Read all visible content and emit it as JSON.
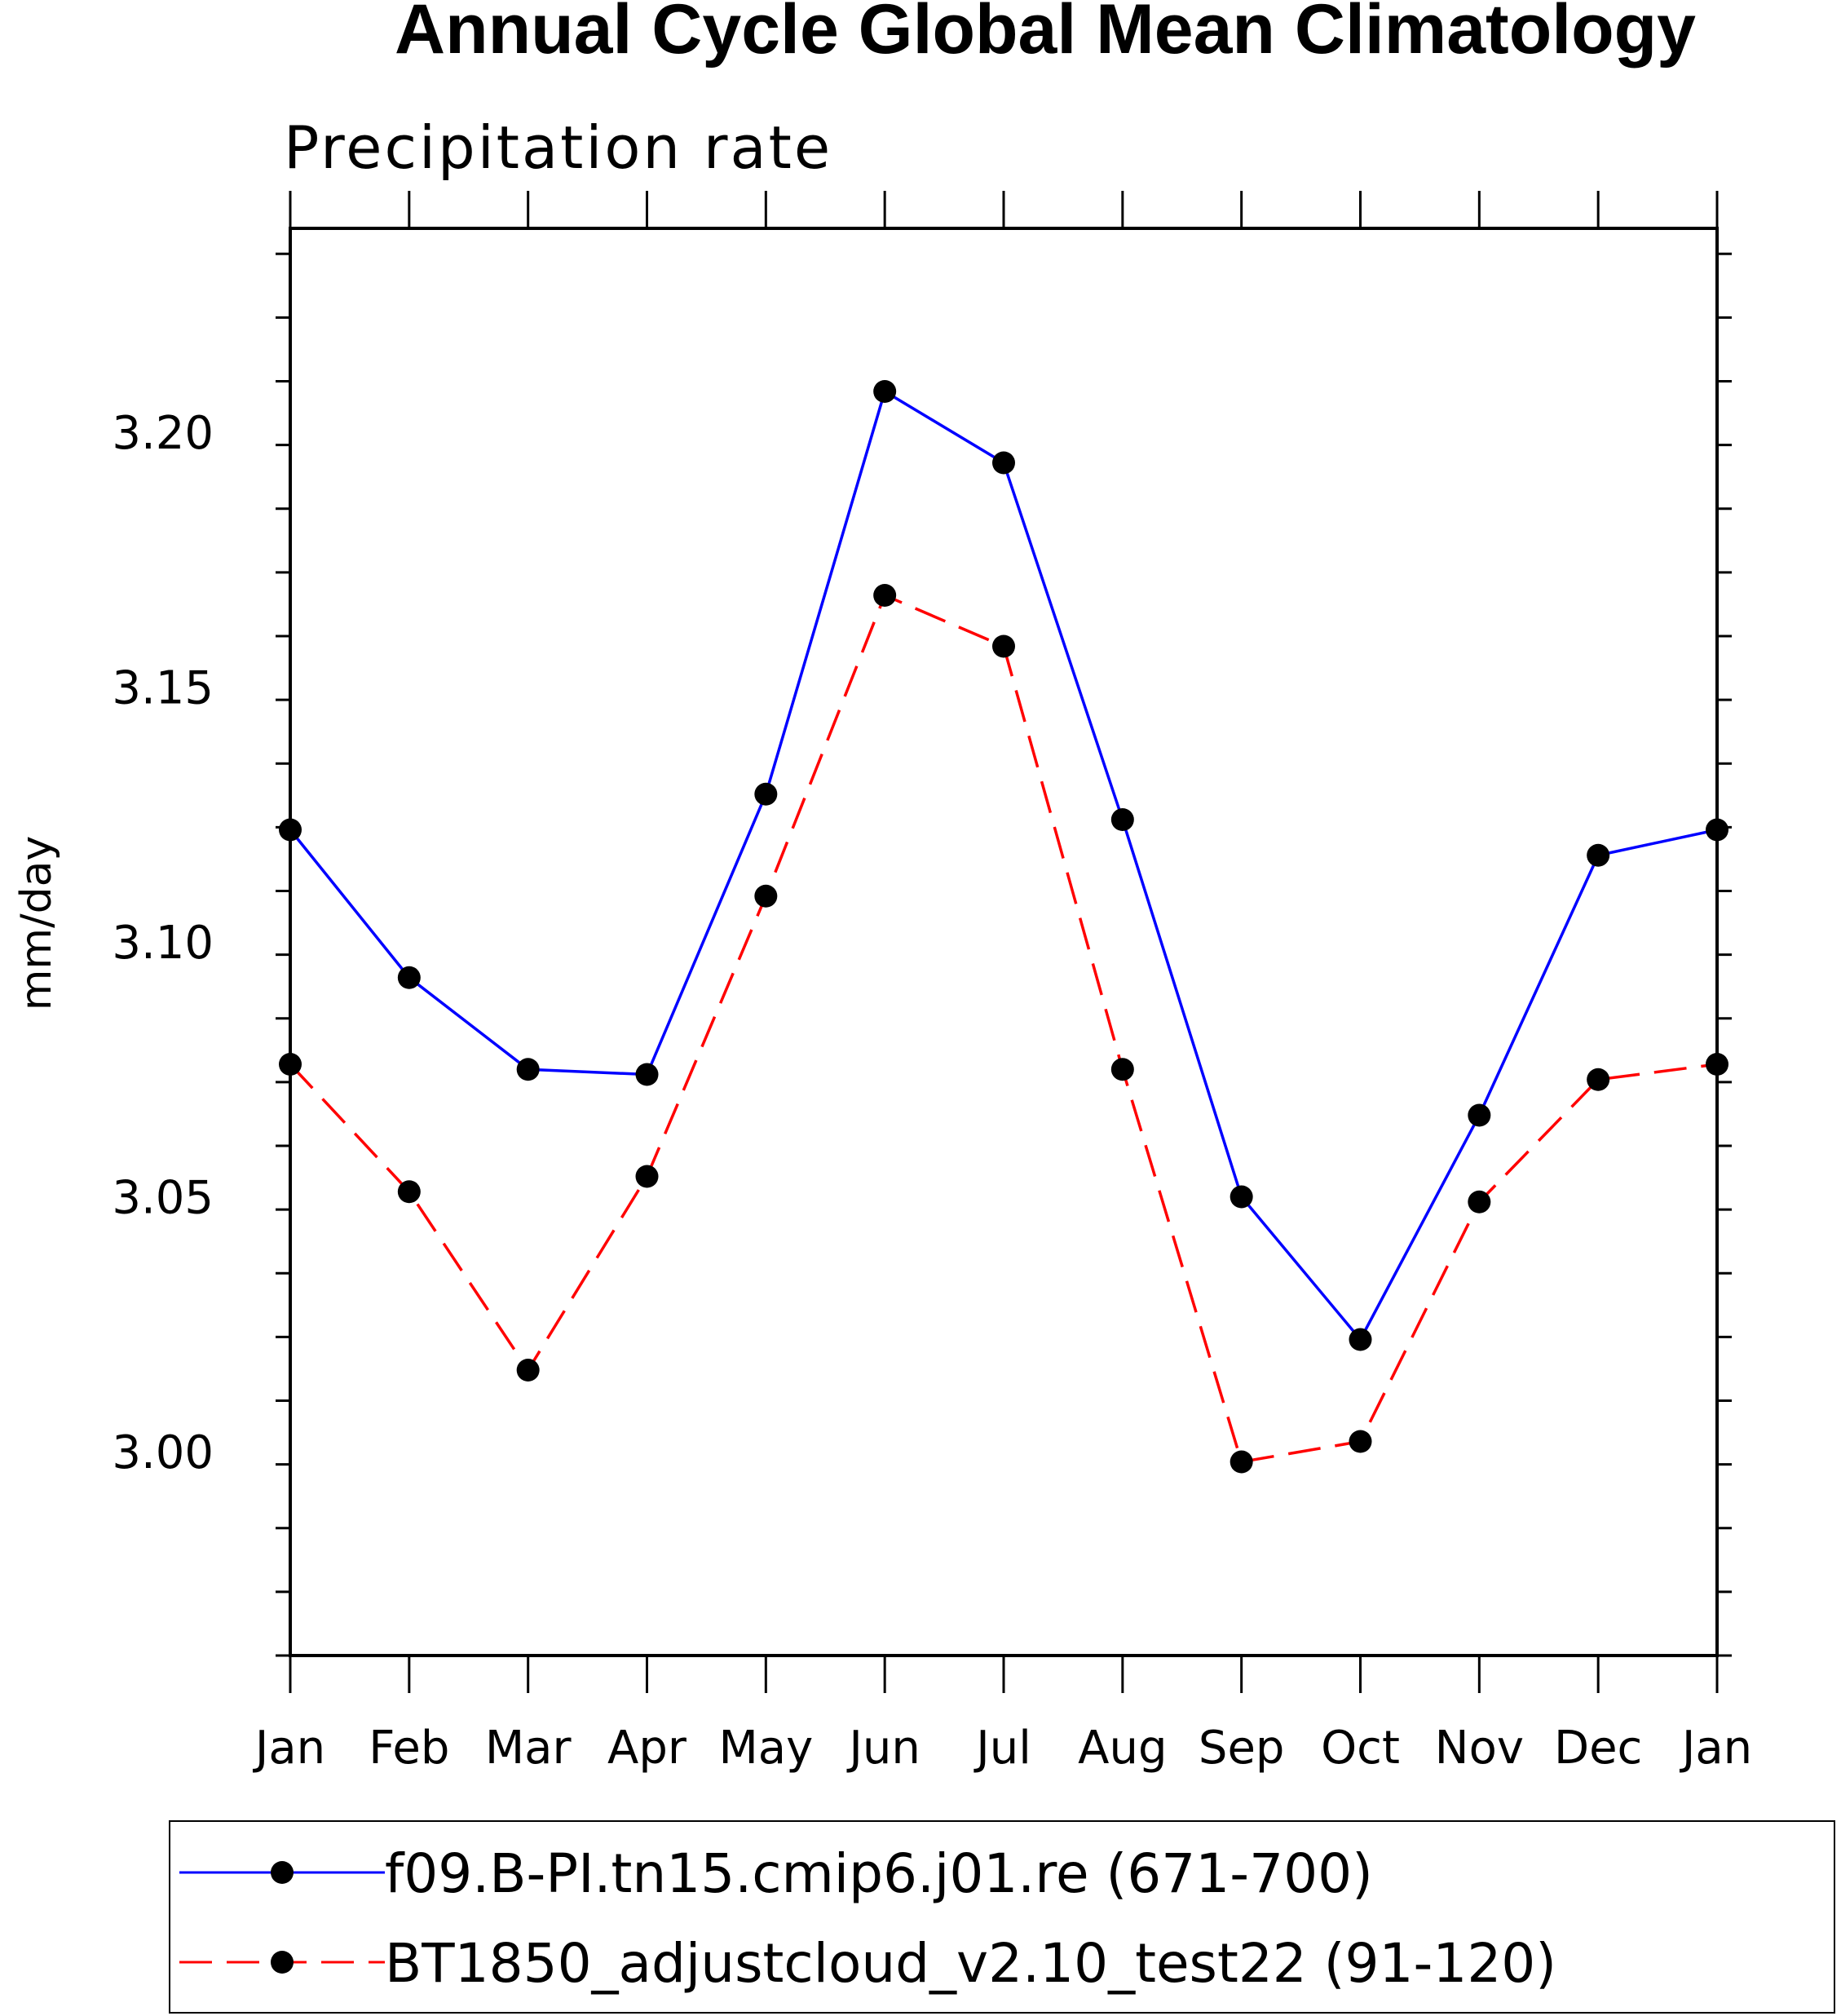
{
  "chart_data": {
    "type": "line",
    "title": "Annual Cycle Global Mean Climatology",
    "subtitle": "Precipitation rate",
    "xlabel": "",
    "ylabel": "mm/day",
    "categories": [
      "Jan",
      "Feb",
      "Mar",
      "Apr",
      "May",
      "Jun",
      "Jul",
      "Aug",
      "Sep",
      "Oct",
      "Nov",
      "Dec",
      "Jan"
    ],
    "ylim": [
      2.96,
      3.24
    ],
    "yticks": [
      3.0,
      3.05,
      3.1,
      3.15,
      3.2
    ],
    "ytick_labels": [
      "3.00",
      "3.05",
      "3.10",
      "3.15",
      "3.20"
    ],
    "grid": false,
    "legend_position": "bottom",
    "series": [
      {
        "name": "f09.B-PI.tn15.cmip6.j01.re (671-700)",
        "color": "#0000ff",
        "linestyle": "solid",
        "marker": "filled-circle",
        "values": [
          3.122,
          3.093,
          3.075,
          3.074,
          3.129,
          3.208,
          3.194,
          3.124,
          3.05,
          3.022,
          3.066,
          3.117,
          3.122
        ]
      },
      {
        "name": "BT1850_adjustcloud_v2.10_test22 (91-120)",
        "color": "#ff0000",
        "linestyle": "dashed",
        "marker": "filled-circle",
        "values": [
          3.076,
          3.051,
          3.016,
          3.054,
          3.109,
          3.168,
          3.158,
          3.075,
          2.998,
          3.002,
          3.049,
          3.073,
          3.076
        ]
      }
    ]
  }
}
